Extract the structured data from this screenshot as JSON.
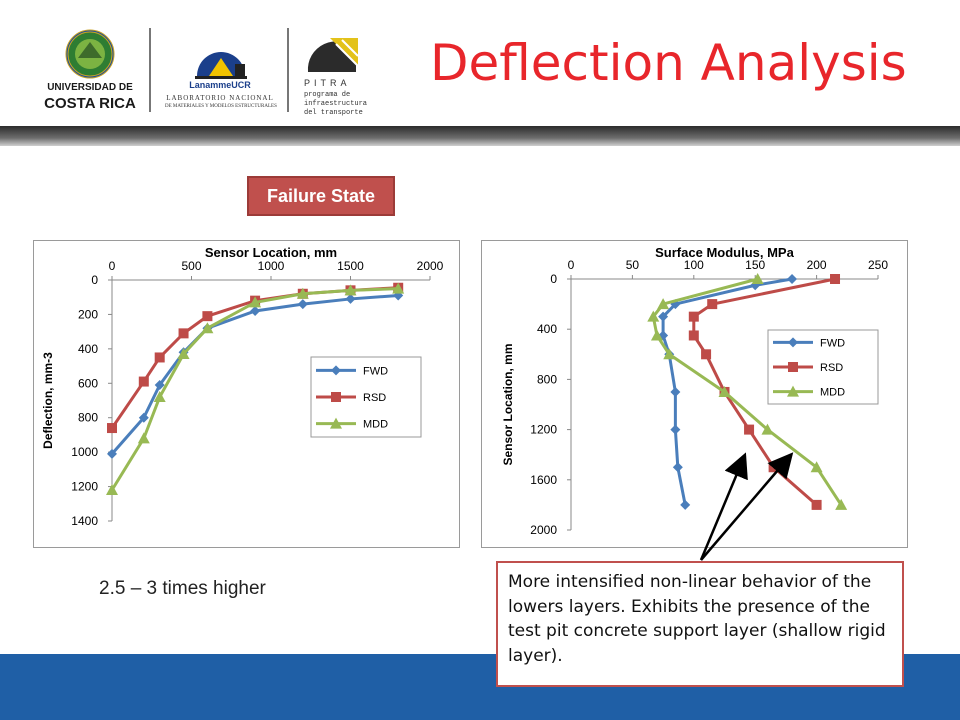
{
  "header": {
    "title": "Deflection Analysis",
    "logos": [
      {
        "text_lines": [
          "UNIVERSIDAD DE",
          "COSTA RICA"
        ]
      },
      {
        "text_lines": [
          "LanammeUCR",
          "LABORATORIO NACIONAL",
          "DE MATERIALES Y MODELOS ESTRUCTURALES"
        ]
      },
      {
        "text_lines": [
          "PITRA",
          "programa de",
          "infraestructura",
          "del transporte"
        ]
      }
    ]
  },
  "badge_label": "Failure State",
  "note_left": "2.5 – 3 times higher",
  "callout_text": "More intensified non-linear behavior of the lowers layers. Exhibits the presence of the test pit concrete support layer (shallow rigid layer).",
  "colors": {
    "title": "#e8262b",
    "fwd": "#4a7ebb",
    "rsd": "#be4b48",
    "mdd": "#98b954",
    "footer": "#1f5fa6",
    "badge": "#c0504d"
  },
  "chart_data": [
    {
      "type": "line",
      "title": "Sensor Location, mm",
      "xlabel": "",
      "ylabel": "Deflection, mm-3",
      "x_ticks": [
        0,
        500,
        1000,
        1500,
        2000
      ],
      "y_ticks": [
        0,
        200,
        400,
        600,
        800,
        1000,
        1200,
        1400
      ],
      "xlim": [
        0,
        2000
      ],
      "ylim": [
        0,
        1400
      ],
      "y_reversed": true,
      "x_axis_position": "top",
      "legend_position": "right",
      "series": [
        {
          "name": "FWD",
          "marker": "diamond",
          "points": [
            [
              0,
              1010
            ],
            [
              200,
              800
            ],
            [
              300,
              610
            ],
            [
              450,
              420
            ],
            [
              600,
              280
            ],
            [
              900,
              180
            ],
            [
              1200,
              140
            ],
            [
              1500,
              110
            ],
            [
              1800,
              90
            ]
          ]
        },
        {
          "name": "RSD",
          "marker": "square",
          "points": [
            [
              0,
              860
            ],
            [
              200,
              590
            ],
            [
              300,
              450
            ],
            [
              450,
              310
            ],
            [
              600,
              210
            ],
            [
              900,
              120
            ],
            [
              1200,
              80
            ],
            [
              1500,
              60
            ],
            [
              1800,
              45
            ]
          ]
        },
        {
          "name": "MDD",
          "marker": "triangle",
          "points": [
            [
              0,
              1220
            ],
            [
              200,
              920
            ],
            [
              300,
              680
            ],
            [
              450,
              430
            ],
            [
              600,
              280
            ],
            [
              900,
              130
            ],
            [
              1200,
              80
            ],
            [
              1500,
              60
            ],
            [
              1800,
              50
            ]
          ]
        }
      ]
    },
    {
      "type": "line",
      "title": "Surface Modulus, MPa",
      "xlabel": "",
      "ylabel": "Sensor Location, mm",
      "x_ticks": [
        0,
        50,
        100,
        150,
        200,
        250
      ],
      "y_ticks": [
        0,
        400,
        800,
        1200,
        1600,
        2000
      ],
      "xlim": [
        0,
        250
      ],
      "ylim": [
        0,
        2000
      ],
      "y_reversed": true,
      "x_axis_position": "top",
      "legend_position": "right",
      "series": [
        {
          "name": "FWD",
          "marker": "diamond",
          "points": [
            [
              180,
              0
            ],
            [
              150,
              50
            ],
            [
              85,
              200
            ],
            [
              75,
              300
            ],
            [
              75,
              450
            ],
            [
              80,
              600
            ],
            [
              85,
              900
            ],
            [
              85,
              1200
            ],
            [
              87,
              1500
            ],
            [
              93,
              1800
            ]
          ]
        },
        {
          "name": "RSD",
          "marker": "square",
          "points": [
            [
              215,
              0
            ],
            [
              115,
              200
            ],
            [
              100,
              300
            ],
            [
              100,
              450
            ],
            [
              110,
              600
            ],
            [
              125,
              900
            ],
            [
              145,
              1200
            ],
            [
              165,
              1500
            ],
            [
              200,
              1800
            ]
          ]
        },
        {
          "name": "MDD",
          "marker": "triangle",
          "points": [
            [
              152,
              0
            ],
            [
              75,
              200
            ],
            [
              67,
              300
            ],
            [
              70,
              450
            ],
            [
              80,
              600
            ],
            [
              125,
              900
            ],
            [
              160,
              1200
            ],
            [
              200,
              1500
            ],
            [
              220,
              1800
            ]
          ]
        }
      ]
    }
  ]
}
